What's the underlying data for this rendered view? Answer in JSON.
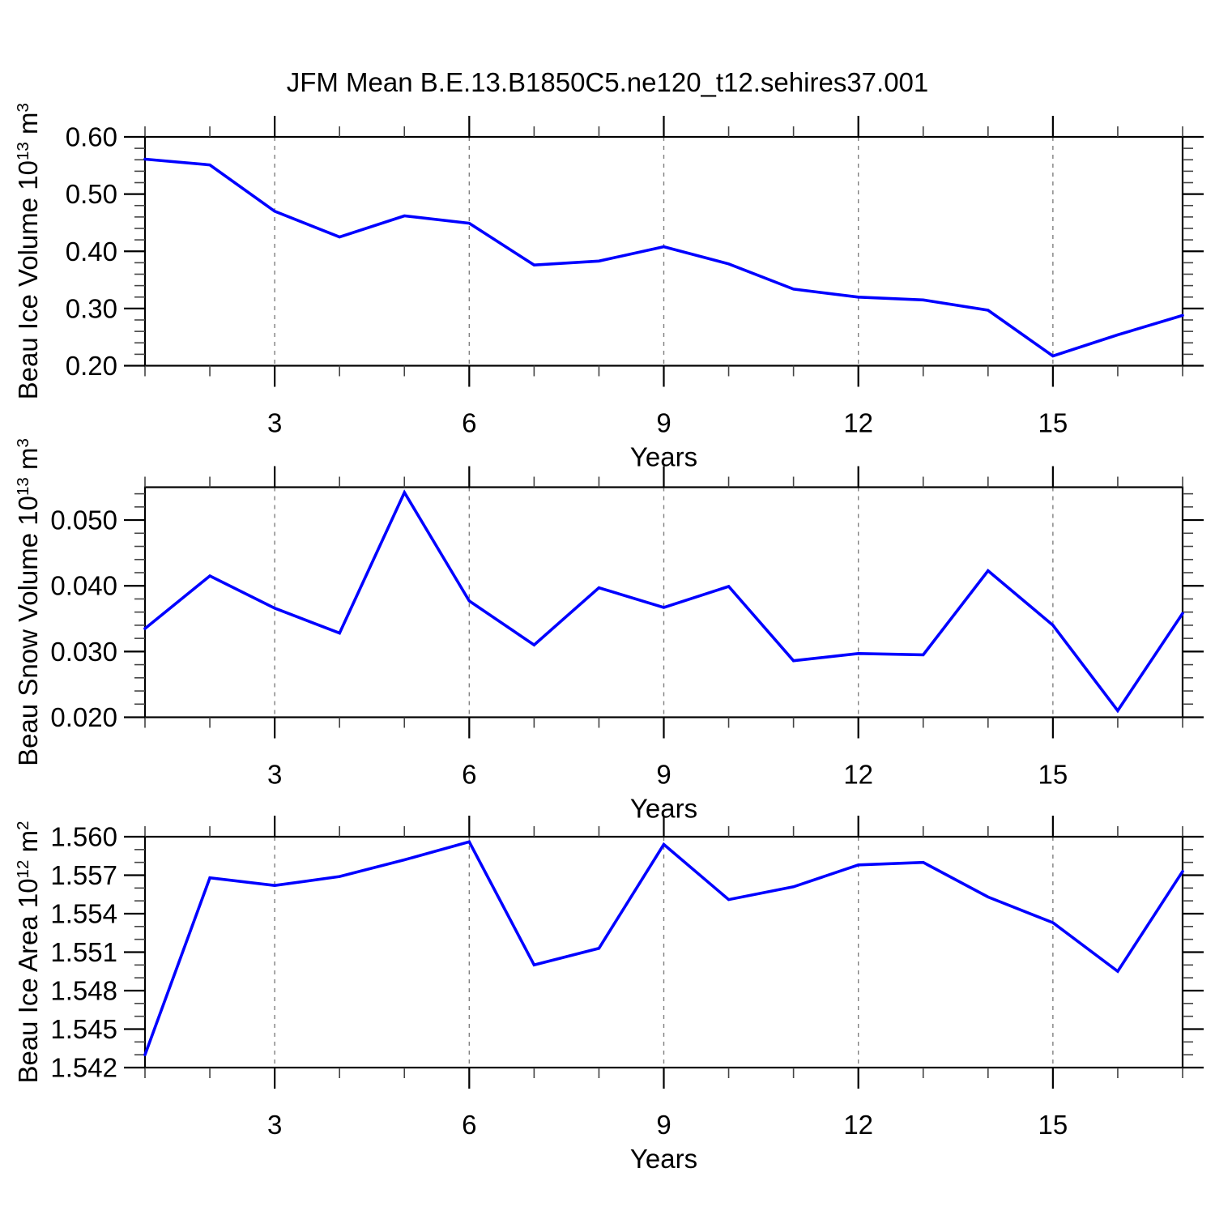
{
  "title": "JFM Mean B.E.13.B1850C5.ne120_t12.sehires37.001",
  "colors": {
    "line": "#0000ff",
    "frame": "#000000",
    "major_tick": "#000000",
    "minor_tick": "#444444",
    "grid": "#808080",
    "text": "#000000",
    "background": "#ffffff"
  },
  "chart_data": [
    {
      "type": "line",
      "series_name": "Beau Ice Volume",
      "ylabel": "Beau Ice Volume 10^13^ m^3^",
      "xlabel": "Years",
      "x": [
        1,
        2,
        3,
        4,
        5,
        6,
        7,
        8,
        9,
        10,
        11,
        12,
        13,
        14,
        15,
        16,
        17
      ],
      "values": [
        0.561,
        0.551,
        0.47,
        0.425,
        0.462,
        0.449,
        0.376,
        0.383,
        0.408,
        0.378,
        0.334,
        0.32,
        0.315,
        0.297,
        0.217,
        0.254,
        0.288
      ],
      "xlim": [
        1,
        17
      ],
      "ylim": [
        0.2,
        0.6
      ],
      "xticks": {
        "major": [
          3,
          6,
          9,
          12,
          15
        ],
        "labels": [
          "3",
          "6",
          "9",
          "12",
          "15"
        ],
        "minor_step": 1
      },
      "yticks": {
        "major": [
          0.6,
          0.5,
          0.4,
          0.3,
          0.2
        ],
        "labels": [
          "0.60",
          "0.50",
          "0.40",
          "0.30",
          "0.20"
        ],
        "minor_step": 0.02
      },
      "grid": "vertical-dashed-at-major-x",
      "legend": "none"
    },
    {
      "type": "line",
      "series_name": "Beau Snow Volume",
      "ylabel": "Beau Snow Volume 10^13^ m^3^",
      "xlabel": "Years",
      "x": [
        1,
        2,
        3,
        4,
        5,
        6,
        7,
        8,
        9,
        10,
        11,
        12,
        13,
        14,
        15,
        16,
        17
      ],
      "values": [
        0.0335,
        0.0415,
        0.0366,
        0.0328,
        0.0542,
        0.0377,
        0.031,
        0.0397,
        0.0367,
        0.0399,
        0.0286,
        0.0297,
        0.0295,
        0.0423,
        0.034,
        0.021,
        0.0358
      ],
      "xlim": [
        1,
        17
      ],
      "ylim": [
        0.02,
        0.055
      ],
      "xticks": {
        "major": [
          3,
          6,
          9,
          12,
          15
        ],
        "labels": [
          "3",
          "6",
          "9",
          "12",
          "15"
        ],
        "minor_step": 1
      },
      "yticks": {
        "major": [
          0.05,
          0.04,
          0.03,
          0.02
        ],
        "labels": [
          "0.050",
          "0.040",
          "0.030",
          "0.020"
        ],
        "minor_step": 0.002
      },
      "grid": "vertical-dashed-at-major-x",
      "legend": "none"
    },
    {
      "type": "line",
      "series_name": "Beau Ice Area",
      "ylabel": "Beau Ice Area 10^12^ m^2^",
      "xlabel": "Years",
      "x": [
        1,
        2,
        3,
        4,
        5,
        6,
        7,
        8,
        9,
        10,
        11,
        12,
        13,
        14,
        15,
        16,
        17
      ],
      "values": [
        1.543,
        1.5568,
        1.5562,
        1.5569,
        1.5582,
        1.5596,
        1.55,
        1.5513,
        1.5594,
        1.5551,
        1.5561,
        1.5578,
        1.558,
        1.5553,
        1.5533,
        1.5495,
        1.5573
      ],
      "xlim": [
        1,
        17
      ],
      "ylim": [
        1.542,
        1.56
      ],
      "xticks": {
        "major": [
          3,
          6,
          9,
          12,
          15
        ],
        "labels": [
          "3",
          "6",
          "9",
          "12",
          "15"
        ],
        "minor_step": 1
      },
      "yticks": {
        "major": [
          1.56,
          1.557,
          1.554,
          1.551,
          1.548,
          1.545,
          1.542
        ],
        "labels": [
          "1.560",
          "1.557",
          "1.554",
          "1.551",
          "1.548",
          "1.545",
          "1.542"
        ],
        "minor_step": 0.001
      },
      "grid": "vertical-dashed-at-major-x",
      "legend": "none"
    }
  ]
}
